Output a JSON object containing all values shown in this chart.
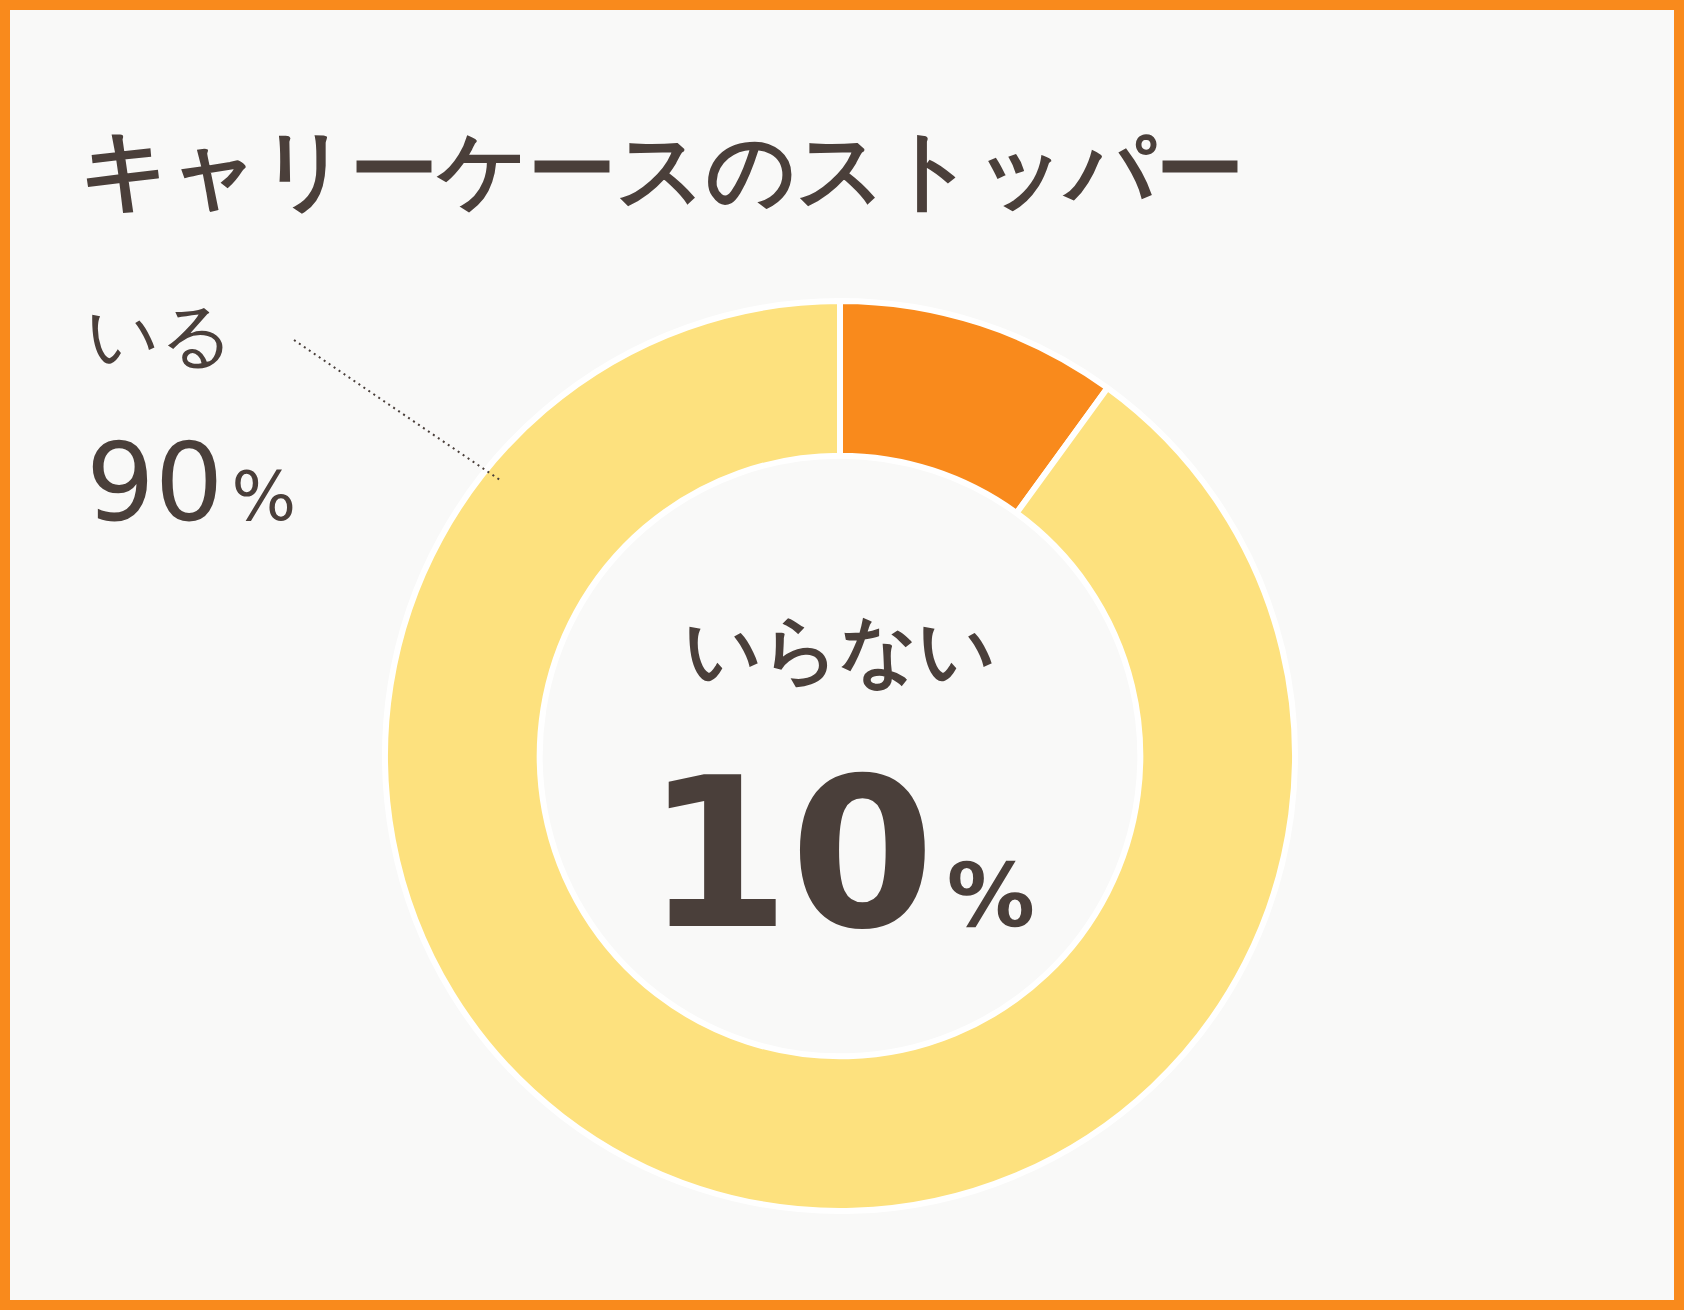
{
  "chart_data": {
    "type": "donut",
    "title": "キャリーケースのストッパー",
    "categories": [
      "いらない",
      "いる"
    ],
    "values": [
      10,
      90
    ],
    "colors": [
      "#f98a1c",
      "#fde17e"
    ],
    "value_labels": [
      "10%",
      "90%"
    ],
    "legend": false
  }
}
